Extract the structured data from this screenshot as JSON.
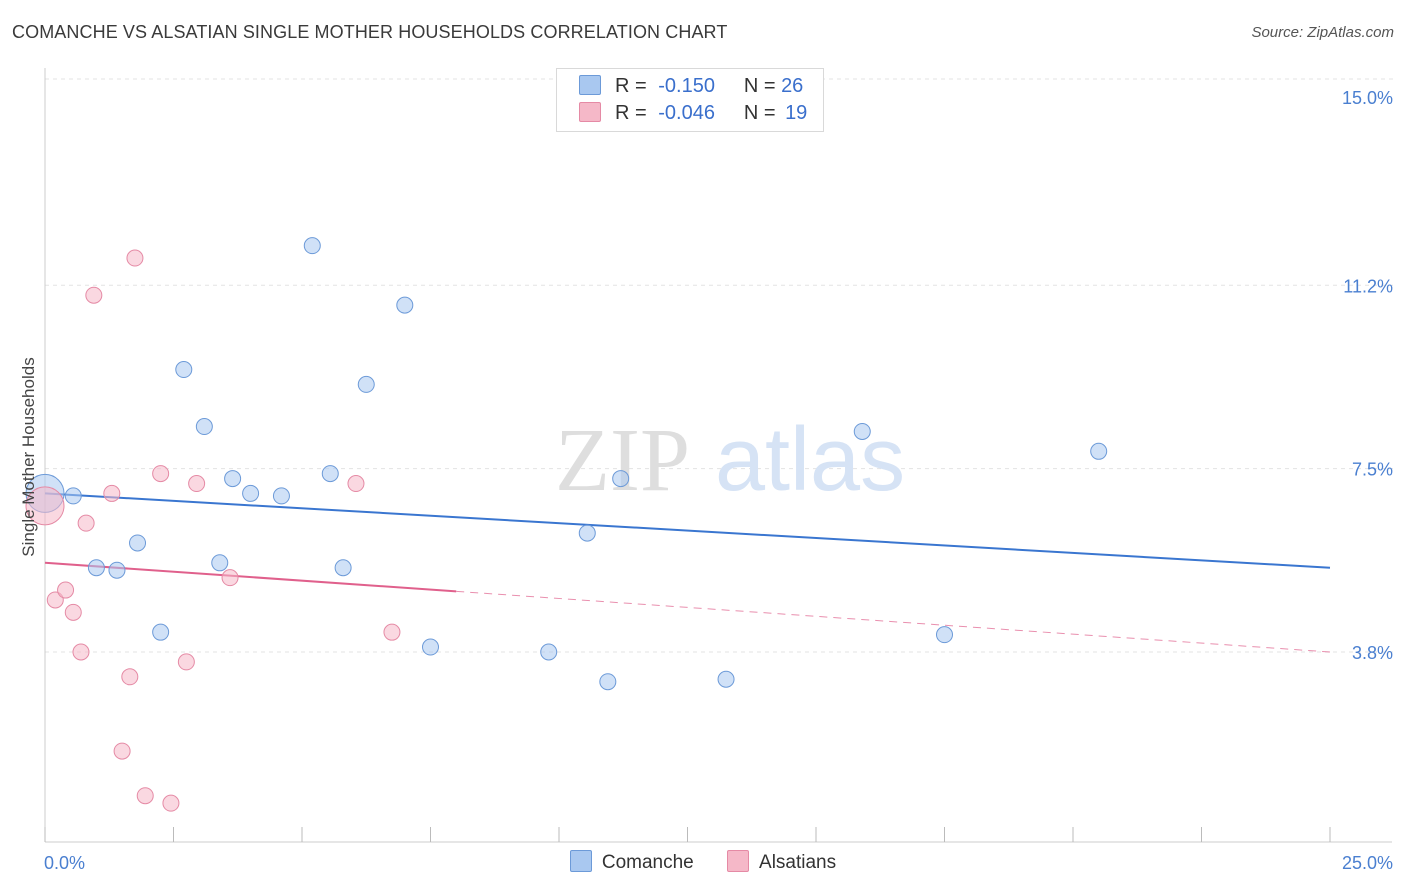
{
  "title": "COMANCHE VS ALSATIAN SINGLE MOTHER HOUSEHOLDS CORRELATION CHART",
  "source": "Source: ZipAtlas.com",
  "watermark": {
    "zip": "ZIP",
    "atlas": "atlas"
  },
  "legend": {
    "rows": [
      {
        "r_label": "R =",
        "r_value": "-0.150",
        "n_label": "N =",
        "n_value": "26",
        "color": "#a9c8f0"
      },
      {
        "r_label": "R =",
        "r_value": "-0.046",
        "n_label": "N =",
        "n_value": "19",
        "color": "#f5b8c8"
      }
    ]
  },
  "chart_data": {
    "type": "scatter",
    "title": "COMANCHE VS ALSATIAN SINGLE MOTHER HOUSEHOLDS CORRELATION CHART",
    "ylabel": "Single Mother Households",
    "xlabel": "",
    "xlim": [
      0,
      25
    ],
    "ylim": [
      0,
      15.6
    ],
    "x_tick_labels": [
      {
        "value": 0,
        "label": "0.0%"
      },
      {
        "value": 25,
        "label": "25.0%"
      }
    ],
    "y_tick_labels": [
      {
        "value": 15.0,
        "label": "15.0%"
      },
      {
        "value": 11.2,
        "label": "11.2%"
      },
      {
        "value": 7.5,
        "label": "7.5%"
      },
      {
        "value": 3.8,
        "label": "3.8%"
      }
    ],
    "series": [
      {
        "name": "Comanche",
        "color": "#a9c8f0",
        "stroke": "#6c9ad8",
        "line_color": "#3a76d0",
        "trend": {
          "x": [
            0,
            25
          ],
          "y": [
            7.0,
            5.5
          ],
          "dashed_from": null
        },
        "points": [
          {
            "x": 0.0,
            "y": 7.0,
            "size": "large"
          },
          {
            "x": 0.55,
            "y": 6.95
          },
          {
            "x": 1.0,
            "y": 5.5
          },
          {
            "x": 1.4,
            "y": 5.45
          },
          {
            "x": 1.8,
            "y": 6.0
          },
          {
            "x": 2.25,
            "y": 4.2
          },
          {
            "x": 2.7,
            "y": 9.5
          },
          {
            "x": 3.1,
            "y": 8.35
          },
          {
            "x": 3.4,
            "y": 5.6
          },
          {
            "x": 3.65,
            "y": 7.3
          },
          {
            "x": 4.0,
            "y": 7.0
          },
          {
            "x": 4.6,
            "y": 6.95
          },
          {
            "x": 5.2,
            "y": 12.0
          },
          {
            "x": 5.55,
            "y": 7.4
          },
          {
            "x": 5.8,
            "y": 5.5
          },
          {
            "x": 6.25,
            "y": 9.2
          },
          {
            "x": 7.0,
            "y": 10.8
          },
          {
            "x": 7.5,
            "y": 3.9
          },
          {
            "x": 9.8,
            "y": 3.8
          },
          {
            "x": 10.55,
            "y": 6.2
          },
          {
            "x": 10.95,
            "y": 3.2
          },
          {
            "x": 11.2,
            "y": 7.3
          },
          {
            "x": 13.25,
            "y": 3.25
          },
          {
            "x": 15.9,
            "y": 8.25
          },
          {
            "x": 17.5,
            "y": 4.15
          },
          {
            "x": 20.5,
            "y": 7.85
          }
        ]
      },
      {
        "name": "Alsatians",
        "color": "#f5b8c8",
        "stroke": "#e58aa5",
        "line_color": "#e0608c",
        "trend": {
          "x": [
            0,
            25
          ],
          "y": [
            5.6,
            3.8
          ],
          "dashed_from": 8.0
        },
        "points": [
          {
            "x": 0.0,
            "y": 6.75,
            "size": "large"
          },
          {
            "x": 0.2,
            "y": 4.85
          },
          {
            "x": 0.4,
            "y": 5.05
          },
          {
            "x": 0.55,
            "y": 4.6
          },
          {
            "x": 0.7,
            "y": 3.8
          },
          {
            "x": 0.8,
            "y": 6.4
          },
          {
            "x": 0.95,
            "y": 11.0
          },
          {
            "x": 1.3,
            "y": 7.0
          },
          {
            "x": 1.5,
            "y": 1.8
          },
          {
            "x": 1.65,
            "y": 3.3
          },
          {
            "x": 1.75,
            "y": 11.75
          },
          {
            "x": 1.95,
            "y": 0.9
          },
          {
            "x": 2.25,
            "y": 7.4
          },
          {
            "x": 2.45,
            "y": 0.75
          },
          {
            "x": 2.75,
            "y": 3.6
          },
          {
            "x": 2.95,
            "y": 7.2
          },
          {
            "x": 3.6,
            "y": 5.3
          },
          {
            "x": 6.05,
            "y": 7.2
          },
          {
            "x": 6.75,
            "y": 4.2
          }
        ]
      }
    ]
  }
}
